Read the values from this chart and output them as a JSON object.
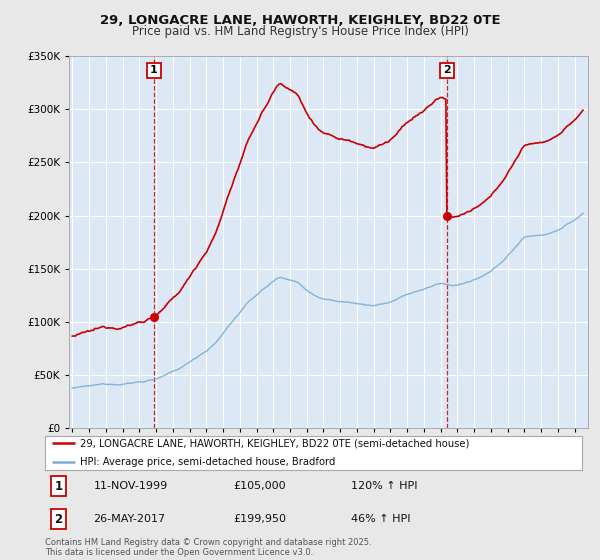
{
  "title_line1": "29, LONGACRE LANE, HAWORTH, KEIGHLEY, BD22 0TE",
  "title_line2": "Price paid vs. HM Land Registry's House Price Index (HPI)",
  "sale1_date": "11-NOV-1999",
  "sale1_price": 105000,
  "sale1_hpi_pct": "120%",
  "sale2_date": "26-MAY-2017",
  "sale2_price": 199950,
  "sale2_hpi_pct": "46%",
  "legend_red": "29, LONGACRE LANE, HAWORTH, KEIGHLEY, BD22 0TE (semi-detached house)",
  "legend_blue": "HPI: Average price, semi-detached house, Bradford",
  "footer": "Contains HM Land Registry data © Crown copyright and database right 2025.\nThis data is licensed under the Open Government Licence v3.0.",
  "ylim": [
    0,
    350000
  ],
  "red_color": "#cc0000",
  "blue_color": "#7aaed4",
  "vline_color": "#cc0000",
  "background_color": "#e8e8e8",
  "plot_bg": "#dce8f5",
  "grid_color": "#ffffff"
}
